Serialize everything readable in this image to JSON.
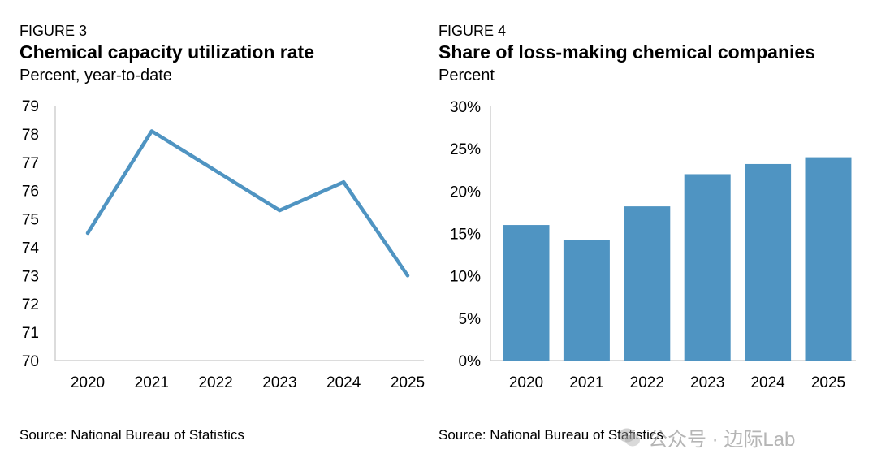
{
  "watermark": {
    "text": "公众号 · 边际Lab",
    "icon": "wechat-icon"
  },
  "figures": {
    "fig3": {
      "label": "FIGURE 3",
      "title": "Chemical capacity utilization rate",
      "subtitle": "Percent, year-to-date",
      "source": "Source: National Bureau of Statistics"
    },
    "fig4": {
      "label": "FIGURE 4",
      "title": "Share of loss-making chemical companies",
      "subtitle": "Percent",
      "source": "Source: National Bureau of Statistics"
    }
  },
  "chart_data": [
    {
      "type": "line",
      "title": "Chemical capacity utilization rate",
      "subtitle": "Percent, year-to-date",
      "categories": [
        "2020",
        "2021",
        "2022",
        "2023",
        "2024",
        "2025"
      ],
      "series": [
        {
          "values": [
            74.5,
            78.1,
            76.7,
            75.3,
            76.3,
            73.0
          ]
        }
      ],
      "ylim": [
        70,
        79
      ],
      "yticks": [
        70,
        71,
        72,
        73,
        74,
        75,
        76,
        77,
        78,
        79
      ],
      "grid": false,
      "color": "#4f94c2"
    },
    {
      "type": "bar",
      "title": "Share of loss-making chemical companies",
      "subtitle": "Percent",
      "categories": [
        "2020",
        "2021",
        "2022",
        "2023",
        "2024",
        "2025"
      ],
      "values": [
        16.0,
        14.2,
        18.2,
        22.0,
        23.2,
        24.0
      ],
      "ylim": [
        0,
        30
      ],
      "yticks": [
        "0%",
        "5%",
        "10%",
        "15%",
        "20%",
        "25%",
        "30%"
      ],
      "grid": false,
      "color": "#4f94c2"
    }
  ]
}
